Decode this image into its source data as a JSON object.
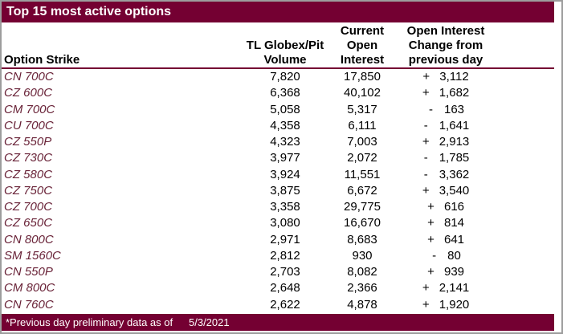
{
  "title_bar": {
    "title": "Top 15 most active options"
  },
  "table": {
    "headers": {
      "option_strike": [
        "Option Strike"
      ],
      "volume": [
        "TL Globex/Pit",
        "Volume"
      ],
      "current_oi": [
        "Current",
        "Open",
        "Interest"
      ],
      "oi_change": [
        "Open Interest",
        "Change from",
        "previous day"
      ]
    },
    "rows": [
      {
        "strike": "CN 700C",
        "volume": "7,820",
        "open_interest": "17,850",
        "change_sign": "+",
        "change_value": "3,112"
      },
      {
        "strike": "CZ 600C",
        "volume": "6,368",
        "open_interest": "40,102",
        "change_sign": "+",
        "change_value": "1,682"
      },
      {
        "strike": "CM 700C",
        "volume": "5,058",
        "open_interest": "5,317",
        "change_sign": "-",
        "change_value": "163"
      },
      {
        "strike": "CU 700C",
        "volume": "4,358",
        "open_interest": "6,111",
        "change_sign": "-",
        "change_value": "1,641"
      },
      {
        "strike": "CZ 550P",
        "volume": "4,323",
        "open_interest": "7,003",
        "change_sign": "+",
        "change_value": "2,913"
      },
      {
        "strike": "CZ 730C",
        "volume": "3,977",
        "open_interest": "2,072",
        "change_sign": "-",
        "change_value": "1,785"
      },
      {
        "strike": "CZ 580C",
        "volume": "3,924",
        "open_interest": "11,551",
        "change_sign": "-",
        "change_value": "3,362"
      },
      {
        "strike": "CZ 750C",
        "volume": "3,875",
        "open_interest": "6,672",
        "change_sign": "+",
        "change_value": "3,540"
      },
      {
        "strike": "CZ 700C",
        "volume": "3,358",
        "open_interest": "29,775",
        "change_sign": "+",
        "change_value": "616"
      },
      {
        "strike": "CZ 650C",
        "volume": "3,080",
        "open_interest": "16,670",
        "change_sign": "+",
        "change_value": "814"
      },
      {
        "strike": "CN 800C",
        "volume": "2,971",
        "open_interest": "8,683",
        "change_sign": "+",
        "change_value": "641"
      },
      {
        "strike": "SM 1560C",
        "volume": "2,812",
        "open_interest": "930",
        "change_sign": "-",
        "change_value": "80"
      },
      {
        "strike": "CN 550P",
        "volume": "2,703",
        "open_interest": "8,082",
        "change_sign": "+",
        "change_value": "939"
      },
      {
        "strike": "CM 800C",
        "volume": "2,648",
        "open_interest": "2,366",
        "change_sign": "+",
        "change_value": "2,141"
      },
      {
        "strike": "CN 760C",
        "volume": "2,622",
        "open_interest": "4,878",
        "change_sign": "+",
        "change_value": "1,920"
      }
    ]
  },
  "footer": {
    "note": "*Previous day preliminary data as of",
    "date": "5/3/2021"
  },
  "colors": {
    "maroon": "#740032",
    "strike_text": "#692338",
    "header_text": "#000000",
    "border_gray": "#9d9d9d"
  }
}
